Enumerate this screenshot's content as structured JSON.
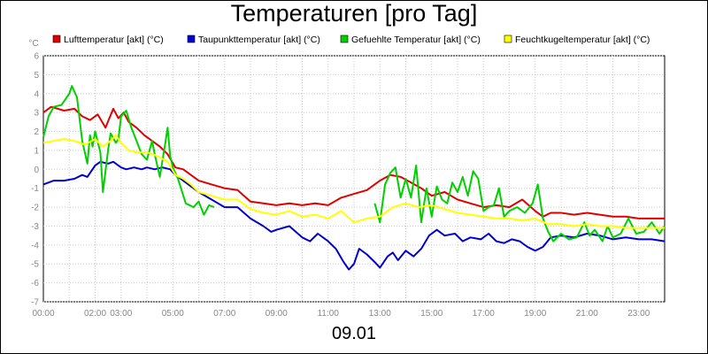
{
  "chart_data": {
    "type": "line",
    "title": "Temperaturen [pro Tag]",
    "x_caption": "09.01",
    "ylabel": "°C",
    "ylim": [
      -7,
      6
    ],
    "xlim": [
      0,
      24
    ],
    "x_ticks": [
      {
        "v": 0,
        "label": "00:00"
      },
      {
        "v": 2,
        "label": "02:00"
      },
      {
        "v": 3,
        "label": "03:00"
      },
      {
        "v": 5,
        "label": "05:00"
      },
      {
        "v": 7,
        "label": "07:00"
      },
      {
        "v": 9,
        "label": "09:00"
      },
      {
        "v": 11,
        "label": "11:00"
      },
      {
        "v": 13,
        "label": "13:00"
      },
      {
        "v": 15,
        "label": "15:00"
      },
      {
        "v": 17,
        "label": "17:00"
      },
      {
        "v": 19,
        "label": "19:00"
      },
      {
        "v": 21,
        "label": "21:00"
      },
      {
        "v": 23,
        "label": "23:00"
      }
    ],
    "y_ticks": [
      6,
      5,
      4,
      3,
      2,
      1,
      0,
      -1,
      -2,
      -3,
      -4,
      -5,
      -6,
      -7
    ],
    "grid": true,
    "legend_position": "top",
    "series": [
      {
        "name": "Lufttemperatur [akt] (°C)",
        "color": "#e00000",
        "points": [
          [
            0,
            3.0
          ],
          [
            0.3,
            3.3
          ],
          [
            0.8,
            3.1
          ],
          [
            1.2,
            3.2
          ],
          [
            1.5,
            2.8
          ],
          [
            1.8,
            2.6
          ],
          [
            2.1,
            2.9
          ],
          [
            2.4,
            2.2
          ],
          [
            2.7,
            3.2
          ],
          [
            2.9,
            2.7
          ],
          [
            3.1,
            3.0
          ],
          [
            3.3,
            2.5
          ],
          [
            3.6,
            2.2
          ],
          [
            3.9,
            1.8
          ],
          [
            4.2,
            1.5
          ],
          [
            4.5,
            1.2
          ],
          [
            4.8,
            0.8
          ],
          [
            5.1,
            0.1
          ],
          [
            5.4,
            0.0
          ],
          [
            5.7,
            -0.3
          ],
          [
            6.0,
            -0.6
          ],
          [
            6.5,
            -0.8
          ],
          [
            7.0,
            -1.0
          ],
          [
            7.5,
            -1.1
          ],
          [
            8.0,
            -1.7
          ],
          [
            8.5,
            -1.8
          ],
          [
            9.0,
            -1.9
          ],
          [
            9.5,
            -1.8
          ],
          [
            10.0,
            -1.9
          ],
          [
            10.5,
            -1.8
          ],
          [
            11.0,
            -1.9
          ],
          [
            11.5,
            -1.5
          ],
          [
            12.0,
            -1.3
          ],
          [
            12.5,
            -1.1
          ],
          [
            13.0,
            -0.6
          ],
          [
            13.4,
            -0.3
          ],
          [
            13.8,
            -0.4
          ],
          [
            14.2,
            -0.7
          ],
          [
            14.6,
            -1.0
          ],
          [
            15.0,
            -1.4
          ],
          [
            15.5,
            -1.2
          ],
          [
            16.0,
            -1.6
          ],
          [
            16.5,
            -1.8
          ],
          [
            17.0,
            -2.0
          ],
          [
            17.5,
            -1.9
          ],
          [
            18.0,
            -2.0
          ],
          [
            18.5,
            -1.6
          ],
          [
            19.0,
            -2.2
          ],
          [
            19.3,
            -2.5
          ],
          [
            19.6,
            -2.3
          ],
          [
            20.0,
            -2.3
          ],
          [
            20.5,
            -2.4
          ],
          [
            21.0,
            -2.3
          ],
          [
            21.5,
            -2.4
          ],
          [
            22.0,
            -2.5
          ],
          [
            22.5,
            -2.5
          ],
          [
            23.0,
            -2.6
          ],
          [
            23.5,
            -2.6
          ],
          [
            24.0,
            -2.6
          ]
        ]
      },
      {
        "name": "Taupunkttemperatur [akt] (°C)",
        "color": "#0000d0",
        "points": [
          [
            0,
            -0.8
          ],
          [
            0.4,
            -0.6
          ],
          [
            0.8,
            -0.6
          ],
          [
            1.2,
            -0.5
          ],
          [
            1.5,
            -0.3
          ],
          [
            1.7,
            -0.4
          ],
          [
            2.0,
            0.2
          ],
          [
            2.2,
            0.4
          ],
          [
            2.5,
            0.3
          ],
          [
            2.7,
            0.4
          ],
          [
            3.0,
            0.1
          ],
          [
            3.2,
            0.0
          ],
          [
            3.5,
            0.1
          ],
          [
            3.8,
            0.0
          ],
          [
            4.0,
            0.1
          ],
          [
            4.3,
            0.0
          ],
          [
            4.6,
            0.1
          ],
          [
            4.9,
            0.0
          ],
          [
            5.1,
            -0.3
          ],
          [
            5.4,
            -0.6
          ],
          [
            5.7,
            -0.9
          ],
          [
            6.0,
            -1.2
          ],
          [
            6.5,
            -1.6
          ],
          [
            7.0,
            -2.0
          ],
          [
            7.5,
            -2.0
          ],
          [
            8.0,
            -2.6
          ],
          [
            8.5,
            -3.0
          ],
          [
            8.8,
            -3.3
          ],
          [
            9.0,
            -3.2
          ],
          [
            9.5,
            -3.0
          ],
          [
            10.0,
            -3.6
          ],
          [
            10.3,
            -3.8
          ],
          [
            10.6,
            -3.4
          ],
          [
            11.0,
            -3.8
          ],
          [
            11.3,
            -4.2
          ],
          [
            11.6,
            -4.9
          ],
          [
            11.8,
            -5.3
          ],
          [
            12.0,
            -5.0
          ],
          [
            12.2,
            -4.2
          ],
          [
            12.5,
            -4.5
          ],
          [
            12.8,
            -4.9
          ],
          [
            13.0,
            -5.2
          ],
          [
            13.3,
            -4.6
          ],
          [
            13.5,
            -4.4
          ],
          [
            13.7,
            -4.8
          ],
          [
            14.0,
            -4.3
          ],
          [
            14.3,
            -4.6
          ],
          [
            14.6,
            -4.2
          ],
          [
            14.9,
            -3.5
          ],
          [
            15.2,
            -3.2
          ],
          [
            15.5,
            -3.5
          ],
          [
            15.9,
            -3.4
          ],
          [
            16.2,
            -3.8
          ],
          [
            16.5,
            -3.6
          ],
          [
            16.9,
            -3.7
          ],
          [
            17.2,
            -3.4
          ],
          [
            17.5,
            -3.8
          ],
          [
            17.8,
            -3.9
          ],
          [
            18.1,
            -3.7
          ],
          [
            18.4,
            -3.8
          ],
          [
            18.7,
            -4.1
          ],
          [
            19.0,
            -4.3
          ],
          [
            19.3,
            -4.1
          ],
          [
            19.6,
            -3.6
          ],
          [
            20.0,
            -3.5
          ],
          [
            20.5,
            -3.6
          ],
          [
            21.0,
            -3.4
          ],
          [
            21.5,
            -3.5
          ],
          [
            22.0,
            -3.7
          ],
          [
            22.5,
            -3.6
          ],
          [
            23.0,
            -3.7
          ],
          [
            23.5,
            -3.7
          ],
          [
            24.0,
            -3.8
          ]
        ]
      },
      {
        "name": "Gefuehlte Temperatur [akt] (°C)",
        "color": "#00d000",
        "points": [
          [
            0,
            1.7
          ],
          [
            0.2,
            2.8
          ],
          [
            0.4,
            3.3
          ],
          [
            0.7,
            3.4
          ],
          [
            1.0,
            4.0
          ],
          [
            1.1,
            4.4
          ],
          [
            1.3,
            3.8
          ],
          [
            1.5,
            1.5
          ],
          [
            1.7,
            0.3
          ],
          [
            1.8,
            1.8
          ],
          [
            1.9,
            1.2
          ],
          [
            2.0,
            2.0
          ],
          [
            2.2,
            0.9
          ],
          [
            2.3,
            -1.2
          ],
          [
            2.5,
            1.0
          ],
          [
            2.6,
            1.9
          ],
          [
            2.8,
            1.4
          ],
          [
            2.9,
            1.6
          ],
          [
            3.0,
            2.8
          ],
          [
            3.2,
            3.1
          ],
          [
            3.4,
            2.2
          ],
          [
            3.6,
            1.5
          ],
          [
            3.8,
            0.8
          ],
          [
            4.0,
            0.5
          ],
          [
            4.2,
            1.5
          ],
          [
            4.3,
            0.8
          ],
          [
            4.5,
            -0.4
          ],
          [
            4.7,
            1.3
          ],
          [
            4.8,
            2.2
          ],
          [
            4.9,
            0.7
          ],
          [
            5.0,
            0.1
          ],
          [
            5.2,
            -0.5
          ],
          [
            5.5,
            -1.8
          ],
          [
            5.8,
            -2.0
          ],
          [
            6.0,
            -1.7
          ],
          [
            6.2,
            -2.4
          ],
          [
            6.4,
            -1.9
          ],
          [
            6.6,
            -2.0
          ],
          [
            null,
            null
          ],
          [
            12.8,
            -1.8
          ],
          [
            13.0,
            -2.8
          ],
          [
            13.2,
            -0.8
          ],
          [
            13.4,
            -0.2
          ],
          [
            13.6,
            0.1
          ],
          [
            13.8,
            -1.5
          ],
          [
            14.0,
            -0.5
          ],
          [
            14.2,
            -1.5
          ],
          [
            14.4,
            0.2
          ],
          [
            14.6,
            -2.8
          ],
          [
            14.8,
            -1.0
          ],
          [
            15.0,
            -2.5
          ],
          [
            15.2,
            -0.9
          ],
          [
            15.4,
            -1.6
          ],
          [
            15.6,
            -1.8
          ],
          [
            15.8,
            -0.7
          ],
          [
            16.0,
            -1.2
          ],
          [
            16.2,
            -0.4
          ],
          [
            16.4,
            -1.4
          ],
          [
            16.6,
            -0.1
          ],
          [
            16.8,
            -0.5
          ],
          [
            17.0,
            -2.2
          ],
          [
            17.2,
            -2.0
          ],
          [
            17.4,
            -1.9
          ],
          [
            17.6,
            -1.0
          ],
          [
            17.8,
            -2.5
          ],
          [
            18.0,
            -2.2
          ],
          [
            18.3,
            -2.0
          ],
          [
            18.6,
            -2.3
          ],
          [
            18.9,
            -1.8
          ],
          [
            19.1,
            -0.8
          ],
          [
            19.3,
            -2.6
          ],
          [
            19.5,
            -3.3
          ],
          [
            19.7,
            -3.8
          ],
          [
            20.0,
            -3.4
          ],
          [
            20.3,
            -3.7
          ],
          [
            20.6,
            -3.6
          ],
          [
            20.9,
            -2.8
          ],
          [
            21.1,
            -3.5
          ],
          [
            21.3,
            -3.2
          ],
          [
            21.6,
            -3.8
          ],
          [
            21.8,
            -3.0
          ],
          [
            22.0,
            -3.6
          ],
          [
            22.3,
            -3.4
          ],
          [
            22.6,
            -2.6
          ],
          [
            22.9,
            -3.4
          ],
          [
            23.2,
            -3.3
          ],
          [
            23.5,
            -2.8
          ],
          [
            23.8,
            -3.4
          ],
          [
            24.0,
            -3.0
          ]
        ]
      },
      {
        "name": "Feuchtkugeltemperatur [akt] (°C)",
        "color": "#ffff00",
        "points": [
          [
            0,
            1.4
          ],
          [
            0.4,
            1.5
          ],
          [
            0.8,
            1.6
          ],
          [
            1.2,
            1.5
          ],
          [
            1.6,
            1.3
          ],
          [
            2.0,
            1.6
          ],
          [
            2.3,
            1.2
          ],
          [
            2.6,
            1.5
          ],
          [
            2.8,
            1.8
          ],
          [
            3.0,
            1.4
          ],
          [
            3.3,
            1.0
          ],
          [
            3.6,
            0.9
          ],
          [
            4.0,
            0.9
          ],
          [
            4.4,
            0.7
          ],
          [
            4.8,
            0.4
          ],
          [
            5.1,
            -0.3
          ],
          [
            5.4,
            -0.5
          ],
          [
            5.7,
            -0.8
          ],
          [
            6.0,
            -1.2
          ],
          [
            6.5,
            -1.4
          ],
          [
            7.0,
            -1.6
          ],
          [
            7.5,
            -1.6
          ],
          [
            8.0,
            -2.1
          ],
          [
            8.5,
            -2.3
          ],
          [
            9.0,
            -2.4
          ],
          [
            9.5,
            -2.2
          ],
          [
            10.0,
            -2.5
          ],
          [
            10.5,
            -2.4
          ],
          [
            11.0,
            -2.6
          ],
          [
            11.5,
            -2.2
          ],
          [
            12.0,
            -2.8
          ],
          [
            12.5,
            -2.6
          ],
          [
            13.0,
            -2.5
          ],
          [
            13.5,
            -2.0
          ],
          [
            14.0,
            -1.8
          ],
          [
            14.5,
            -2.0
          ],
          [
            15.0,
            -1.9
          ],
          [
            15.5,
            -2.1
          ],
          [
            16.0,
            -2.3
          ],
          [
            16.5,
            -2.4
          ],
          [
            17.0,
            -2.5
          ],
          [
            17.5,
            -2.6
          ],
          [
            18.0,
            -2.6
          ],
          [
            18.5,
            -2.7
          ],
          [
            19.0,
            -2.6
          ],
          [
            19.5,
            -2.9
          ],
          [
            20.0,
            -2.9
          ],
          [
            20.5,
            -3.0
          ],
          [
            21.0,
            -2.9
          ],
          [
            21.5,
            -3.0
          ],
          [
            22.0,
            -3.0
          ],
          [
            22.5,
            -3.1
          ],
          [
            23.0,
            -3.1
          ],
          [
            23.5,
            -3.1
          ],
          [
            24.0,
            -3.1
          ]
        ]
      }
    ]
  }
}
